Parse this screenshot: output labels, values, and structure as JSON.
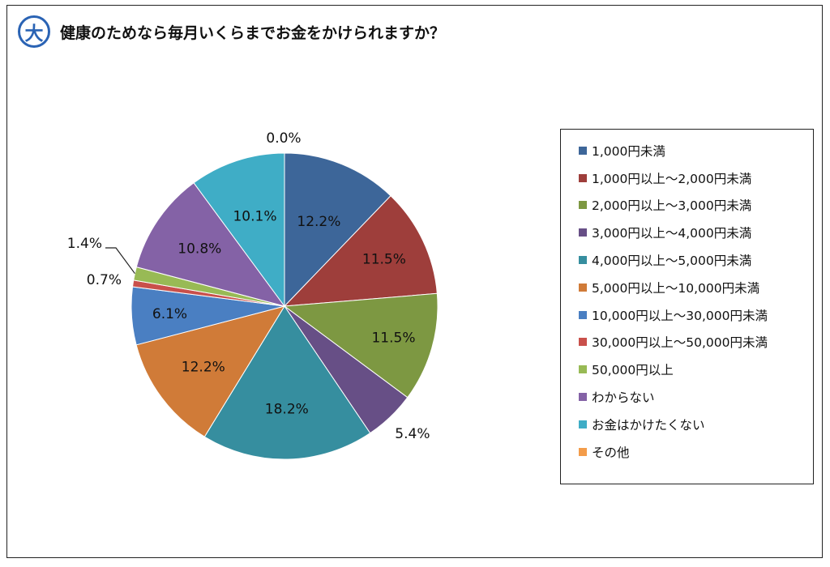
{
  "header": {
    "badge": "大",
    "title": "健康のためなら毎月いくらまでお金をかけられますか？"
  },
  "chart_data": {
    "type": "pie",
    "title": "健康のためなら毎月いくらまでお金をかけられますか？",
    "categories": [
      "1,000円未満",
      "1,000円以上～2,000円未満",
      "2,000円以上～3,000円未満",
      "3,000円以上～4,000円未満",
      "4,000円以上～5,000円未満",
      "5,000円以上～10,000円未満",
      "10,000円以上～30,000円未満",
      "30,000円以上～50,000円未満",
      "50,000円以上",
      "わからない",
      "お金はかけたくない",
      "その他"
    ],
    "values": [
      12.2,
      11.5,
      11.5,
      5.4,
      18.2,
      12.2,
      6.1,
      0.7,
      1.4,
      10.8,
      10.1,
      0.0
    ],
    "labels": [
      "12.2%",
      "11.5%",
      "11.5%",
      "5.4%",
      "18.2%",
      "12.2%",
      "6.1%",
      "0.7%",
      "1.4%",
      "10.8%",
      "10.1%",
      "0.0%"
    ],
    "colors": [
      "#3d6699",
      "#9e3e3b",
      "#7d9842",
      "#674f86",
      "#368e9f",
      "#d07b38",
      "#4a7fc2",
      "#c9504b",
      "#98ba55",
      "#8462a6",
      "#3fadc6",
      "#f39c4a"
    ],
    "start_angle": "12 o'clock",
    "direction": "clockwise",
    "legend_position": "right"
  }
}
